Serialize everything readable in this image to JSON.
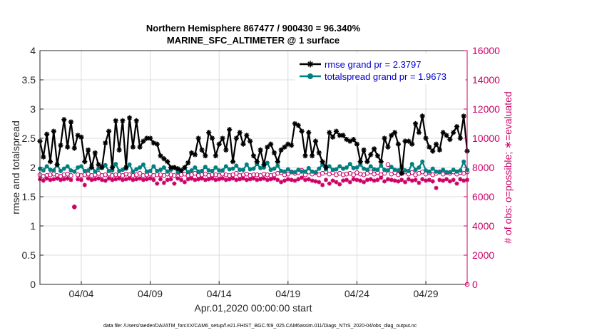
{
  "chart_data": {
    "type": "line",
    "title": "Northern Hemisphere 867477 / 900430 = 96.340%",
    "subtitle": "MARINE_SFC_ALTIMETER @ 1 surface",
    "xlabel": "Apr.01,2020 00:00:00 start",
    "ylabel_left": "rmse and totalspread",
    "ylabel_right": "# of obs: o=possible; ∗=evaluated",
    "footer": "data file: /Users/raeder/DAI/ATM_forcXX/CAM6_setup/f.e21.FHIST_BGC.f09_025.CAM6assim.011/Diags_NTrS_2020-04/obs_diag_output.nc",
    "xlim": [
      1,
      32
    ],
    "ylim_left": [
      0,
      4
    ],
    "ylim_right": [
      0,
      16000
    ],
    "x_ticks": [
      4,
      9,
      14,
      19,
      24,
      29
    ],
    "x_tick_labels": [
      "04/04",
      "04/09",
      "04/14",
      "04/19",
      "04/24",
      "04/29"
    ],
    "y_left_ticks": [
      "0",
      "0.5",
      "1",
      "1.5",
      "2",
      "2.5",
      "3",
      "3.5",
      "4"
    ],
    "y_right_ticks": [
      "0",
      "2000",
      "4000",
      "6000",
      "8000",
      "10000",
      "12000",
      "14000",
      "16000"
    ],
    "grid": true,
    "legend_position": "top-right",
    "colors": {
      "rmse": "#000000",
      "spread": "#008080",
      "obs": "#cc0066"
    },
    "series": [
      {
        "name": "rmse grand pr = 2.3797",
        "axis": "left",
        "x_start": 1,
        "x_step": 0.25,
        "values": [
          2.45,
          2.18,
          2.57,
          2.1,
          2.62,
          2.05,
          2.38,
          2.82,
          2.35,
          2.78,
          2.33,
          2.55,
          2.52,
          2.1,
          2.3,
          2.0,
          2.25,
          2.05,
          2.0,
          2.42,
          2.62,
          2.0,
          2.8,
          2.3,
          2.8,
          2.0,
          2.85,
          2.35,
          2.8,
          2.35,
          2.45,
          2.5,
          2.5,
          2.42,
          2.4,
          2.2,
          2.15,
          2.1,
          2.0,
          2.0,
          1.98,
          1.95,
          2.0,
          2.08,
          2.25,
          2.22,
          2.5,
          2.3,
          2.2,
          2.6,
          2.5,
          2.2,
          2.4,
          2.5,
          2.3,
          2.65,
          2.1,
          2.5,
          2.6,
          2.4,
          2.55,
          2.45,
          2.2,
          2.1,
          2.3,
          2.05,
          2.35,
          2.4,
          2.25,
          2.1,
          2.3,
          2.35,
          2.4,
          2.38,
          2.75,
          2.72,
          2.62,
          2.2,
          2.6,
          2.2,
          2.45,
          2.25,
          2.1,
          2.0,
          2.6,
          2.52,
          2.62,
          2.55,
          2.55,
          2.48,
          2.45,
          2.48,
          2.4,
          2.1,
          2.3,
          2.1,
          2.22,
          2.32,
          2.2,
          2.1,
          2.5,
          2.35,
          2.55,
          2.6,
          2.4,
          1.9,
          2.45,
          2.45,
          2.4,
          2.75,
          2.6,
          2.88,
          2.5,
          2.35,
          2.28,
          2.4,
          2.3,
          2.6,
          2.55,
          2.48,
          2.6,
          2.7,
          2.5,
          2.88,
          2.28
        ]
      },
      {
        "name": "totalspread grand pr = 1.9673",
        "axis": "left",
        "x_start": 1,
        "x_step": 0.25,
        "values": [
          1.98,
          1.95,
          2.02,
          1.96,
          1.95,
          2.05,
          1.94,
          1.98,
          2.02,
          1.95,
          1.93,
          2.0,
          2.02,
          1.94,
          1.95,
          2.04,
          1.93,
          1.98,
          2.0,
          2.04,
          1.94,
          1.95,
          2.06,
          1.94,
          1.96,
          1.98,
          2.05,
          1.93,
          1.97,
          2.0,
          2.05,
          1.93,
          1.94,
          2.02,
          1.94,
          1.96,
          2.0,
          1.93,
          1.96,
          2.0,
          1.92,
          1.94,
          1.99,
          1.92,
          1.95,
          2.0,
          1.93,
          1.94,
          2.01,
          1.95,
          1.94,
          2.0,
          1.95,
          1.95,
          2.02,
          1.97,
          1.98,
          2.03,
          1.96,
          1.96,
          2.05,
          1.97,
          1.98,
          2.06,
          1.99,
          2.0,
          2.08,
          1.96,
          1.98,
          2.03,
          1.94,
          1.93,
          1.97,
          1.92,
          1.92,
          1.96,
          1.93,
          1.93,
          1.99,
          1.93,
          1.92,
          1.98,
          2.05,
          1.97,
          2.02,
          1.96,
          1.97,
          2.02,
          1.98,
          2.0,
          2.06,
          1.99,
          2.0,
          2.05,
          1.98,
          1.96,
          2.02,
          1.97,
          1.96,
          2.03,
          1.96,
          1.95,
          2.01,
          1.96,
          1.95,
          2.02,
          1.95,
          1.94,
          2.06,
          1.96,
          2.0,
          2.1,
          1.95,
          1.93,
          1.98,
          1.93,
          1.92,
          1.96,
          1.92,
          1.92,
          1.96,
          1.93,
          1.95,
          2.1,
          1.96
        ]
      },
      {
        "name": "possible",
        "axis": "right",
        "marker": "o",
        "x_start": 1,
        "x_step": 0.25,
        "values": [
          7500,
          7400,
          7450,
          7500,
          7550,
          7450,
          7400,
          7500,
          7550,
          7450,
          5300,
          7500,
          7450,
          7500,
          7550,
          7450,
          7500,
          7600,
          7450,
          7500,
          7550,
          7450,
          7500,
          7500,
          7450,
          7550,
          7500,
          7450,
          7500,
          7600,
          7450,
          7500,
          7550,
          7450,
          7500,
          7500,
          7450,
          7550,
          7500,
          7450,
          7400,
          7500,
          7550,
          7450,
          7500,
          7600,
          7450,
          7500,
          7550,
          7450,
          7500,
          7500,
          7450,
          7550,
          7500,
          7450,
          7500,
          7600,
          7450,
          7500,
          7550,
          7450,
          7500,
          7500,
          7450,
          7550,
          7500,
          7450,
          7500,
          7600,
          7650,
          7500,
          7550,
          7700,
          7600,
          7650,
          7800,
          7500,
          7700,
          7550,
          7650,
          7500,
          7600,
          7700,
          7550,
          7650,
          7500,
          7600,
          7500,
          7550,
          7600,
          7500,
          7650,
          7550,
          7500,
          7600,
          7700,
          7550,
          7650,
          7500,
          7600,
          8200,
          7550,
          7650,
          7500,
          7600,
          7700,
          7550,
          7650,
          7500,
          7600,
          7700,
          7550,
          7650,
          7500,
          7600,
          7700,
          7550,
          7650,
          7600,
          7700,
          7550,
          7650,
          7600,
          7700
        ]
      },
      {
        "name": "evaluated",
        "axis": "right",
        "marker": "*",
        "x_start": 1,
        "x_step": 0.25,
        "values": [
          7200,
          7100,
          7250,
          7150,
          7200,
          7250,
          7150,
          7200,
          7250,
          7150,
          5300,
          7200,
          7150,
          6800,
          7250,
          7150,
          7200,
          7250,
          7150,
          7100,
          7250,
          7150,
          7200,
          7250,
          7150,
          7200,
          7250,
          7150,
          7200,
          7250,
          7150,
          7200,
          7250,
          7150,
          6900,
          7200,
          6950,
          7150,
          7200,
          6900,
          7250,
          7150,
          7000,
          7200,
          7250,
          7150,
          7200,
          7250,
          7150,
          7200,
          7250,
          7150,
          7200,
          7250,
          7150,
          7200,
          7250,
          7150,
          7200,
          7250,
          7150,
          7200,
          7250,
          7150,
          7200,
          7250,
          7150,
          7200,
          7250,
          7150,
          7000,
          7100,
          7200,
          7150,
          7100,
          7200,
          7300,
          7150,
          7200,
          7100,
          7050,
          7000,
          6800,
          7150,
          6900,
          7100,
          7000,
          6850,
          7100,
          7150,
          7000,
          7200,
          7150,
          7100,
          7000,
          7150,
          7200,
          7100,
          7150,
          7300,
          7050,
          7200,
          7150,
          7100,
          7050,
          7150,
          7000,
          7200,
          7100,
          7150,
          6950,
          7200,
          7100,
          7150,
          7050,
          6600,
          7150,
          7100,
          7200,
          7050,
          7150,
          6900,
          7200,
          7100,
          7150
        ]
      }
    ]
  }
}
